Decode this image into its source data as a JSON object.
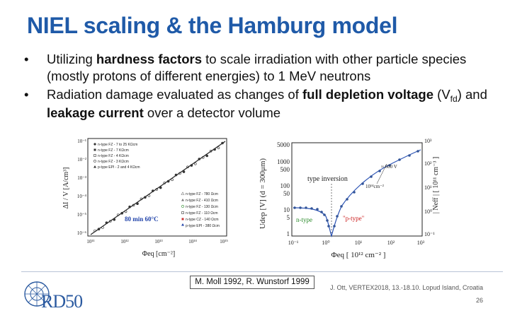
{
  "slide": {
    "title": "NIEL scaling & the Hamburg model",
    "bullets": [
      {
        "pre": "Utilizing ",
        "bold": "hardness factors",
        "post": " to scale irradiation with other particle species (mostly protons of different energies) to 1 MeV neutrons"
      },
      {
        "pre": "Radiation damage evaluated as changes of ",
        "bold1": "full depletion voltage",
        "mid1": " (V",
        "sub": "fd",
        "mid2": ") and ",
        "bold2": "leakage current",
        "post": " over a detector volume"
      }
    ],
    "caption": "M. Moll 1992, R. Wunstorf 1999",
    "conference": "J. Ott, VERTEX2018, 13.-18.10. Lopud Island, Croatia",
    "page_number": "26",
    "logo_text": "RD50",
    "bullet_char": "•"
  },
  "left_plot": {
    "ylabel": "ΔI / V  [A/cm³]",
    "xlabel": "Φeq [cm⁻²]",
    "annotation": "80 min 60°C",
    "y_ticks": [
      "10⁻¹",
      "10⁻²",
      "10⁻³",
      "10⁻⁴",
      "10⁻⁵",
      "10⁻⁶"
    ],
    "x_ticks": [
      "10¹¹",
      "10¹²",
      "10¹³",
      "10¹⁴",
      "10¹⁵"
    ],
    "legend_top": [
      "n-type FZ - 7 to 25 KΩcm",
      "n-type FZ - 7 KΩcm",
      "n-type FZ - 4 KΩcm",
      "n-type FZ - 3 KΩcm",
      "p-type EPI - 2 and 4 KΩcm"
    ],
    "legend_bottom": [
      "n-type FZ - 780 Ωcm",
      "n-type FZ - 410 Ωcm",
      "n-type FZ - 130 Ωcm",
      "n-type FZ - 110 Ωcm",
      "n-type CZ - 140 Ωcm",
      "p-type EPI - 380 Ωcm"
    ],
    "marker_color": "#333333",
    "line_color": "#222222",
    "annotation_color": "#2244aa"
  },
  "right_plot": {
    "ylabel": "Udep [V]  (d = 300μm)",
    "ylabel_right": "| Neff | [ 10¹¹ cm⁻³ ]",
    "xlabel": "Φeq  [ 10¹² cm⁻² ]",
    "y_ticks": [
      "5000",
      "1000",
      "500",
      "100",
      "50",
      "10",
      "5",
      "1"
    ],
    "x_ticks": [
      "10⁻¹",
      "10⁰",
      "10¹",
      "10²",
      "10³"
    ],
    "y_ticks_right": [
      "10³",
      "10²",
      "10¹",
      "10⁰",
      "10⁻¹"
    ],
    "type_inversion": "type inversion",
    "n_type": "n-type",
    "p_type": "\"p-type\"",
    "v600": "≈ 600 V",
    "fluence": "10¹⁴cm⁻²",
    "curve_color": "#2a52b4",
    "marker_color": "#335599",
    "label_red": "#cc2222",
    "label_green": "#2a8a2a"
  }
}
